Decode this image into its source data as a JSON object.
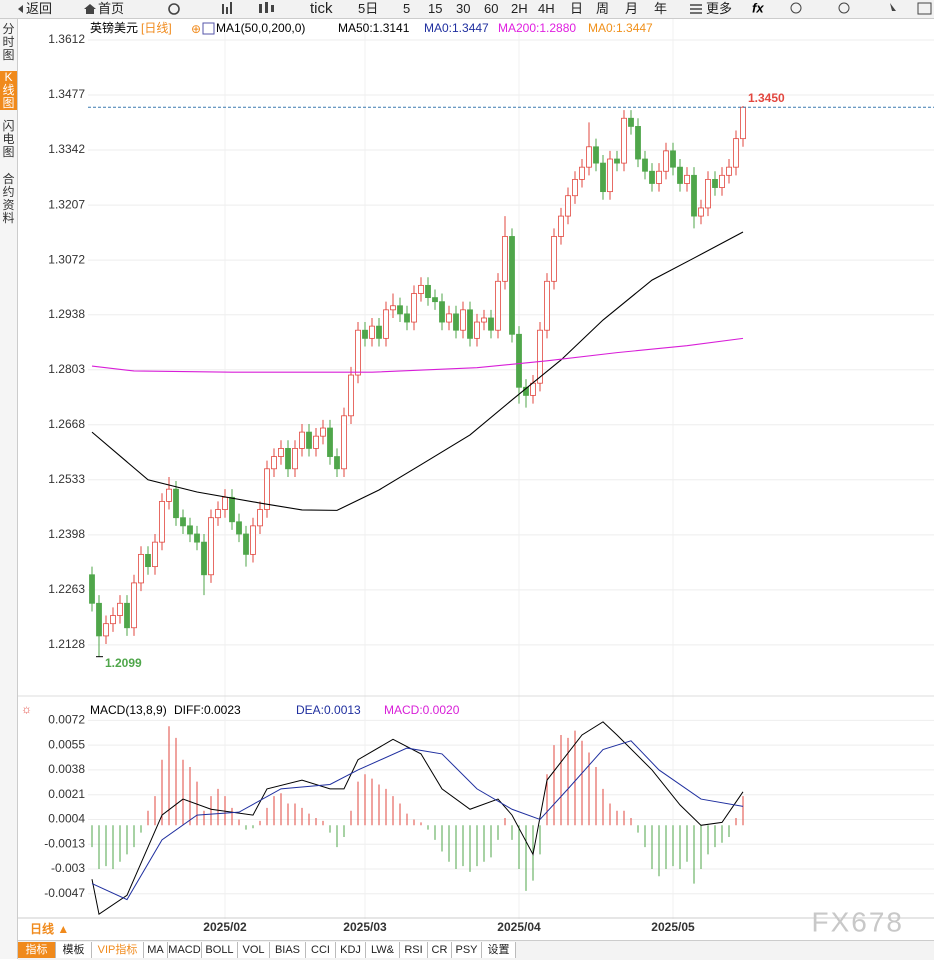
{
  "toolbar": [
    "返回",
    "首页",
    "tick",
    "5日",
    "5",
    "15",
    "30",
    "60",
    "2H",
    "4H",
    "日",
    "周",
    "月",
    "年",
    "更多"
  ],
  "side_tabs": [
    "分时图",
    "K线图",
    "闪电图",
    "合约资料"
  ],
  "chart_data": {
    "type": "candlestick",
    "title": "英镑美元",
    "period": "[日线]",
    "legend": [
      {
        "text": "MA1(50,0,200,0)",
        "color": "#000000"
      },
      {
        "text": "MA50:1.3141",
        "color": "#000000"
      },
      {
        "text": "MA0:1.3447",
        "color": "#1f2f9f"
      },
      {
        "text": "MA200:1.2880",
        "color": "#e020e0"
      },
      {
        "text": "MA0:1.3447",
        "color": "#f0901a"
      }
    ],
    "ylim": [
      1.2005,
      1.3666
    ],
    "yticks": [
      1.2128,
      1.2263,
      1.2398,
      1.2533,
      1.2668,
      1.2803,
      1.2938,
      1.3072,
      1.3207,
      1.3342,
      1.3477,
      1.3612
    ],
    "up_color": "#e2473f",
    "down_color": "#4fa64a",
    "candles": [
      [
        1.23,
        1.232,
        1.221,
        1.223
      ],
      [
        1.223,
        1.225,
        1.2099,
        1.215
      ],
      [
        1.215,
        1.22,
        1.213,
        1.218
      ],
      [
        1.218,
        1.222,
        1.216,
        1.22
      ],
      [
        1.22,
        1.225,
        1.218,
        1.223
      ],
      [
        1.223,
        1.225,
        1.215,
        1.217
      ],
      [
        1.217,
        1.23,
        1.215,
        1.228
      ],
      [
        1.228,
        1.237,
        1.226,
        1.235
      ],
      [
        1.235,
        1.237,
        1.23,
        1.232
      ],
      [
        1.232,
        1.24,
        1.23,
        1.238
      ],
      [
        1.238,
        1.25,
        1.236,
        1.248
      ],
      [
        1.248,
        1.254,
        1.246,
        1.251
      ],
      [
        1.251,
        1.253,
        1.242,
        1.244
      ],
      [
        1.244,
        1.246,
        1.24,
        1.242
      ],
      [
        1.242,
        1.244,
        1.238,
        1.24
      ],
      [
        1.24,
        1.242,
        1.236,
        1.238
      ],
      [
        1.238,
        1.24,
        1.225,
        1.23
      ],
      [
        1.23,
        1.246,
        1.228,
        1.244
      ],
      [
        1.244,
        1.248,
        1.242,
        1.246
      ],
      [
        1.246,
        1.251,
        1.244,
        1.249
      ],
      [
        1.249,
        1.251,
        1.241,
        1.243
      ],
      [
        1.243,
        1.245,
        1.238,
        1.24
      ],
      [
        1.24,
        1.242,
        1.232,
        1.235
      ],
      [
        1.235,
        1.244,
        1.233,
        1.242
      ],
      [
        1.242,
        1.248,
        1.24,
        1.246
      ],
      [
        1.246,
        1.258,
        1.244,
        1.256
      ],
      [
        1.256,
        1.261,
        1.254,
        1.259
      ],
      [
        1.259,
        1.263,
        1.257,
        1.261
      ],
      [
        1.261,
        1.263,
        1.254,
        1.256
      ],
      [
        1.256,
        1.263,
        1.254,
        1.261
      ],
      [
        1.261,
        1.267,
        1.259,
        1.265
      ],
      [
        1.265,
        1.267,
        1.259,
        1.261
      ],
      [
        1.261,
        1.266,
        1.259,
        1.264
      ],
      [
        1.264,
        1.268,
        1.262,
        1.266
      ],
      [
        1.266,
        1.268,
        1.257,
        1.259
      ],
      [
        1.259,
        1.261,
        1.254,
        1.256
      ],
      [
        1.256,
        1.271,
        1.254,
        1.269
      ],
      [
        1.269,
        1.281,
        1.267,
        1.279
      ],
      [
        1.279,
        1.292,
        1.277,
        1.29
      ],
      [
        1.29,
        1.292,
        1.286,
        1.288
      ],
      [
        1.288,
        1.293,
        1.286,
        1.291
      ],
      [
        1.291,
        1.293,
        1.286,
        1.288
      ],
      [
        1.288,
        1.297,
        1.286,
        1.295
      ],
      [
        1.295,
        1.299,
        1.293,
        1.296
      ],
      [
        1.296,
        1.298,
        1.292,
        1.294
      ],
      [
        1.294,
        1.296,
        1.29,
        1.292
      ],
      [
        1.292,
        1.301,
        1.29,
        1.299
      ],
      [
        1.299,
        1.303,
        1.297,
        1.301
      ],
      [
        1.301,
        1.303,
        1.296,
        1.298
      ],
      [
        1.298,
        1.3,
        1.295,
        1.297
      ],
      [
        1.297,
        1.299,
        1.29,
        1.292
      ],
      [
        1.292,
        1.296,
        1.29,
        1.294
      ],
      [
        1.294,
        1.296,
        1.288,
        1.29
      ],
      [
        1.29,
        1.297,
        1.288,
        1.295
      ],
      [
        1.295,
        1.297,
        1.286,
        1.288
      ],
      [
        1.288,
        1.294,
        1.286,
        1.292
      ],
      [
        1.292,
        1.295,
        1.29,
        1.293
      ],
      [
        1.293,
        1.295,
        1.288,
        1.29
      ],
      [
        1.29,
        1.304,
        1.288,
        1.302
      ],
      [
        1.302,
        1.318,
        1.3,
        1.313
      ],
      [
        1.313,
        1.315,
        1.287,
        1.289
      ],
      [
        1.289,
        1.291,
        1.272,
        1.276
      ],
      [
        1.276,
        1.278,
        1.271,
        1.274
      ],
      [
        1.274,
        1.279,
        1.272,
        1.277
      ],
      [
        1.277,
        1.292,
        1.275,
        1.29
      ],
      [
        1.29,
        1.304,
        1.288,
        1.302
      ],
      [
        1.302,
        1.315,
        1.3,
        1.313
      ],
      [
        1.313,
        1.32,
        1.311,
        1.318
      ],
      [
        1.318,
        1.325,
        1.316,
        1.323
      ],
      [
        1.323,
        1.329,
        1.321,
        1.327
      ],
      [
        1.327,
        1.332,
        1.325,
        1.33
      ],
      [
        1.33,
        1.341,
        1.328,
        1.335
      ],
      [
        1.335,
        1.337,
        1.329,
        1.331
      ],
      [
        1.331,
        1.333,
        1.322,
        1.324
      ],
      [
        1.324,
        1.334,
        1.322,
        1.332
      ],
      [
        1.332,
        1.334,
        1.329,
        1.331
      ],
      [
        1.331,
        1.344,
        1.329,
        1.342
      ],
      [
        1.342,
        1.344,
        1.338,
        1.34
      ],
      [
        1.34,
        1.342,
        1.33,
        1.332
      ],
      [
        1.332,
        1.334,
        1.327,
        1.329
      ],
      [
        1.329,
        1.331,
        1.324,
        1.326
      ],
      [
        1.326,
        1.331,
        1.324,
        1.329
      ],
      [
        1.329,
        1.336,
        1.327,
        1.334
      ],
      [
        1.334,
        1.336,
        1.328,
        1.33
      ],
      [
        1.33,
        1.332,
        1.324,
        1.326
      ],
      [
        1.326,
        1.33,
        1.324,
        1.328
      ],
      [
        1.328,
        1.33,
        1.315,
        1.318
      ],
      [
        1.318,
        1.322,
        1.316,
        1.32
      ],
      [
        1.32,
        1.329,
        1.318,
        1.327
      ],
      [
        1.327,
        1.329,
        1.323,
        1.325
      ],
      [
        1.325,
        1.33,
        1.323,
        1.328
      ],
      [
        1.328,
        1.332,
        1.326,
        1.33
      ],
      [
        1.33,
        1.339,
        1.328,
        1.337
      ],
      [
        1.337,
        1.345,
        1.335,
        1.3447
      ]
    ],
    "ma": [
      {
        "name": "MA50",
        "color": "#000000",
        "points": [
          [
            0,
            1.265
          ],
          [
            8,
            1.2533
          ],
          [
            15,
            1.2503
          ],
          [
            24,
            1.2476
          ],
          [
            30,
            1.2459
          ],
          [
            35,
            1.2458
          ],
          [
            41,
            1.2508
          ],
          [
            47,
            1.257
          ],
          [
            54,
            1.2643
          ],
          [
            60,
            1.2729
          ],
          [
            67,
            1.2827
          ],
          [
            73,
            1.2925
          ],
          [
            80,
            1.3023
          ],
          [
            86,
            1.3077
          ],
          [
            93,
            1.3141
          ]
        ]
      },
      {
        "name": "MA200",
        "color": "#d81ed8",
        "points": [
          [
            0,
            1.2812
          ],
          [
            6,
            1.28
          ],
          [
            20,
            1.2797
          ],
          [
            40,
            1.2797
          ],
          [
            55,
            1.2808
          ],
          [
            65,
            1.2825
          ],
          [
            75,
            1.2845
          ],
          [
            85,
            1.2862
          ],
          [
            93,
            1.288
          ]
        ]
      }
    ],
    "high_label": {
      "value": 1.345,
      "label": "1.3450"
    },
    "low_label": 1.2099,
    "xlabels": [
      {
        "value": 19,
        "label": "2025/02"
      },
      {
        "value": 39,
        "label": "2025/03"
      },
      {
        "value": 61,
        "label": "2025/04"
      },
      {
        "value": 83,
        "label": "2025/05"
      }
    ],
    "macd": {
      "legend": [
        {
          "text": "MACD(13,8,9)",
          "color": "#000000"
        },
        {
          "text": "DIFF:0.0023",
          "color": "#000000"
        },
        {
          "text": "DEA:0.0013",
          "color": "#1f2f9f"
        },
        {
          "text": "MACD:0.0020",
          "color": "#d81ed8"
        }
      ],
      "ylim": [
        -0.0065,
        0.0086
      ],
      "yticks": [
        -0.0047,
        -0.003,
        -0.0013,
        0.0004,
        0.0021,
        0.0038,
        0.0055,
        0.0072
      ],
      "histogram": [
        -0.0015,
        -0.003,
        -0.0028,
        -0.003,
        -0.0025,
        -0.002,
        -0.0015,
        -0.0005,
        0.001,
        0.002,
        0.0045,
        0.0068,
        0.006,
        0.0045,
        0.004,
        0.003,
        0.001,
        0.002,
        0.0025,
        0.002,
        0.0012,
        0.0004,
        -0.0003,
        -0.0002,
        0.0003,
        0.0012,
        0.002,
        0.0022,
        0.0015,
        0.0015,
        0.0012,
        0.0008,
        0.0005,
        0.0003,
        -0.0005,
        -0.0015,
        -0.0008,
        0.001,
        0.003,
        0.0035,
        0.0032,
        0.0028,
        0.0025,
        0.002,
        0.0015,
        0.0008,
        0.0004,
        0.0002,
        -0.0003,
        -0.001,
        -0.0018,
        -0.0025,
        -0.003,
        -0.0028,
        -0.0032,
        -0.0028,
        -0.0025,
        -0.0022,
        -0.001,
        0.0005,
        -0.001,
        -0.003,
        -0.0045,
        -0.0038,
        -0.002,
        0.0035,
        0.0055,
        0.0062,
        0.006,
        0.0065,
        0.0058,
        0.005,
        0.004,
        0.0025,
        0.0015,
        0.001,
        0.001,
        0.0005,
        -0.0005,
        -0.0015,
        -0.003,
        -0.0035,
        -0.003,
        -0.0028,
        -0.003,
        -0.0025,
        -0.004,
        -0.003,
        -0.002,
        -0.0015,
        -0.0012,
        -0.0008,
        0.0005,
        0.002
      ],
      "diff": {
        "name": "DIFF",
        "color": "#000000",
        "points": [
          [
            0,
            -0.0037
          ],
          [
            1,
            -0.0061
          ],
          [
            5,
            -0.0048
          ],
          [
            10,
            0.0007
          ],
          [
            13,
            0.0018
          ],
          [
            17,
            0.0011
          ],
          [
            23,
            0.0007
          ],
          [
            25,
            0.0025
          ],
          [
            30,
            0.0031
          ],
          [
            34,
            0.0025
          ],
          [
            36,
            0.0025
          ],
          [
            38,
            0.0045
          ],
          [
            43,
            0.0059
          ],
          [
            47,
            0.0049
          ],
          [
            50,
            0.0025
          ],
          [
            54,
            0.0011
          ],
          [
            58,
            0.0018
          ],
          [
            60,
            0.0007
          ],
          [
            63,
            -0.002
          ],
          [
            65,
            0.0031
          ],
          [
            70,
            0.0062
          ],
          [
            73,
            0.0071
          ],
          [
            75,
            0.0062
          ],
          [
            80,
            0.0038
          ],
          [
            84,
            0.0014
          ],
          [
            87,
            0.0
          ],
          [
            90,
            0.0002
          ],
          [
            93,
            0.0023
          ]
        ]
      },
      "dea": {
        "name": "DEA",
        "color": "#1f2f9f",
        "points": [
          [
            0,
            -0.004
          ],
          [
            5,
            -0.0051
          ],
          [
            10,
            -0.001
          ],
          [
            15,
            0.0007
          ],
          [
            21,
            0.0009
          ],
          [
            27,
            0.0025
          ],
          [
            34,
            0.0028
          ],
          [
            38,
            0.0038
          ],
          [
            45,
            0.0053
          ],
          [
            50,
            0.0049
          ],
          [
            55,
            0.0025
          ],
          [
            60,
            0.0011
          ],
          [
            64,
            0.0004
          ],
          [
            68,
            0.0025
          ],
          [
            73,
            0.0052
          ],
          [
            77,
            0.0058
          ],
          [
            81,
            0.0038
          ],
          [
            87,
            0.0018
          ],
          [
            93,
            0.0013
          ]
        ]
      }
    }
  },
  "period_selector": "日线 ▲",
  "indicator_tabs": [
    "指标",
    "模板",
    "VIP指标",
    "MA",
    "MACD",
    "BOLL",
    "VOL",
    "BIAS",
    "CCI",
    "KDJ",
    "LW&",
    "RSI",
    "CR",
    "PSY",
    "设置"
  ],
  "watermark": "FX678"
}
